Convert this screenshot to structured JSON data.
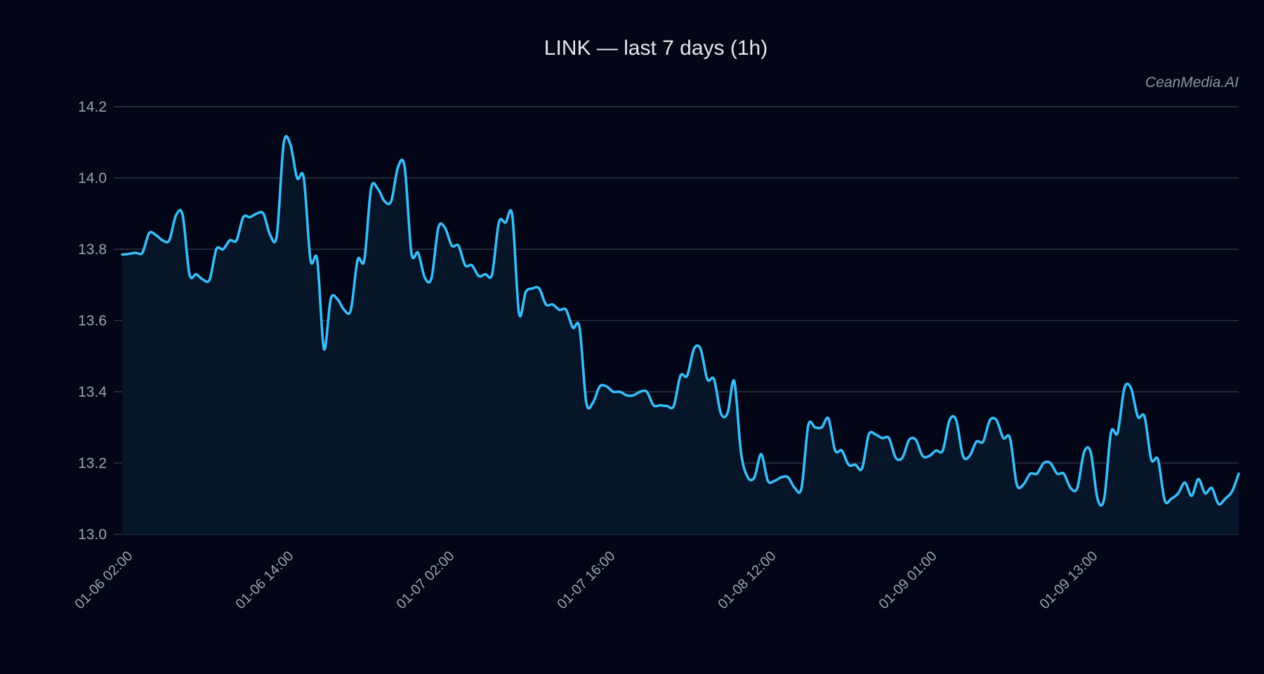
{
  "title": "LINK — last 7 days (1h)",
  "watermark": "CeanMedia.AI",
  "colors": {
    "background": "#020617",
    "line": "#38bdf8",
    "fill": "#061528",
    "grid": "#2c3645",
    "text": "#9ca3af"
  },
  "chart_data": {
    "type": "area",
    "title": "LINK — last 7 days (1h)",
    "xlabel": "",
    "ylabel": "",
    "ylim": [
      13.0,
      14.2
    ],
    "yticks": [
      13.0,
      13.2,
      13.4,
      13.6,
      13.8,
      14.0,
      14.2
    ],
    "ytick_labels": [
      "13.0",
      "13.2",
      "13.4",
      "13.6",
      "13.8",
      "14.0",
      "14.2"
    ],
    "xtick_labels": [
      "01-06 02:00",
      "01-06 14:00",
      "01-07 02:00",
      "01-07 16:00",
      "01-08 12:00",
      "01-09 01:00",
      "01-09 13:00"
    ],
    "xtick_index": [
      0,
      21,
      42,
      63,
      84,
      105,
      126
    ],
    "grid": true,
    "legend": null,
    "series": [
      {
        "name": "LINK",
        "values": [
          13.785,
          13.787,
          13.79,
          13.79,
          13.845,
          13.84,
          13.825,
          13.825,
          13.895,
          13.895,
          13.73,
          13.73,
          13.715,
          13.715,
          13.8,
          13.8,
          13.825,
          13.825,
          13.89,
          13.89,
          13.9,
          13.9,
          13.84,
          13.84,
          14.095,
          14.095,
          14.0,
          14.0,
          13.77,
          13.77,
          13.52,
          13.66,
          13.66,
          13.63,
          13.63,
          13.77,
          13.77,
          13.97,
          13.97,
          13.935,
          13.935,
          14.03,
          14.03,
          13.79,
          13.79,
          13.72,
          13.72,
          13.86,
          13.86,
          13.81,
          13.81,
          13.755,
          13.755,
          13.725,
          13.73,
          13.73,
          13.875,
          13.875,
          13.895,
          13.62,
          13.68,
          13.69,
          13.69,
          13.645,
          13.645,
          13.63,
          13.63,
          13.58,
          13.58,
          13.37,
          13.37,
          13.415,
          13.415,
          13.4,
          13.4,
          13.39,
          13.39,
          13.4,
          13.4,
          13.362,
          13.362,
          13.36,
          13.36,
          13.445,
          13.445,
          13.52,
          13.52,
          13.435,
          13.435,
          13.34,
          13.34,
          13.43,
          13.23,
          13.16,
          13.16,
          13.225,
          13.15,
          13.15,
          13.16,
          13.16,
          13.13,
          13.13,
          13.305,
          13.3,
          13.3,
          13.325,
          13.235,
          13.235,
          13.195,
          13.195,
          13.185,
          13.28,
          13.28,
          13.27,
          13.27,
          13.215,
          13.215,
          13.265,
          13.265,
          13.22,
          13.22,
          13.235,
          13.235,
          13.32,
          13.32,
          13.22,
          13.22,
          13.26,
          13.26,
          13.32,
          13.32,
          13.27,
          13.27,
          13.14,
          13.14,
          13.17,
          13.17,
          13.2,
          13.2,
          13.17,
          13.17,
          13.13,
          13.13,
          13.23,
          13.23,
          13.1,
          13.1,
          13.285,
          13.285,
          13.41,
          13.41,
          13.33,
          13.33,
          13.21,
          13.21,
          13.095,
          13.1,
          13.115,
          13.145,
          13.108,
          13.155,
          13.115,
          13.13,
          13.085,
          13.1,
          13.12,
          13.17
        ]
      }
    ]
  }
}
